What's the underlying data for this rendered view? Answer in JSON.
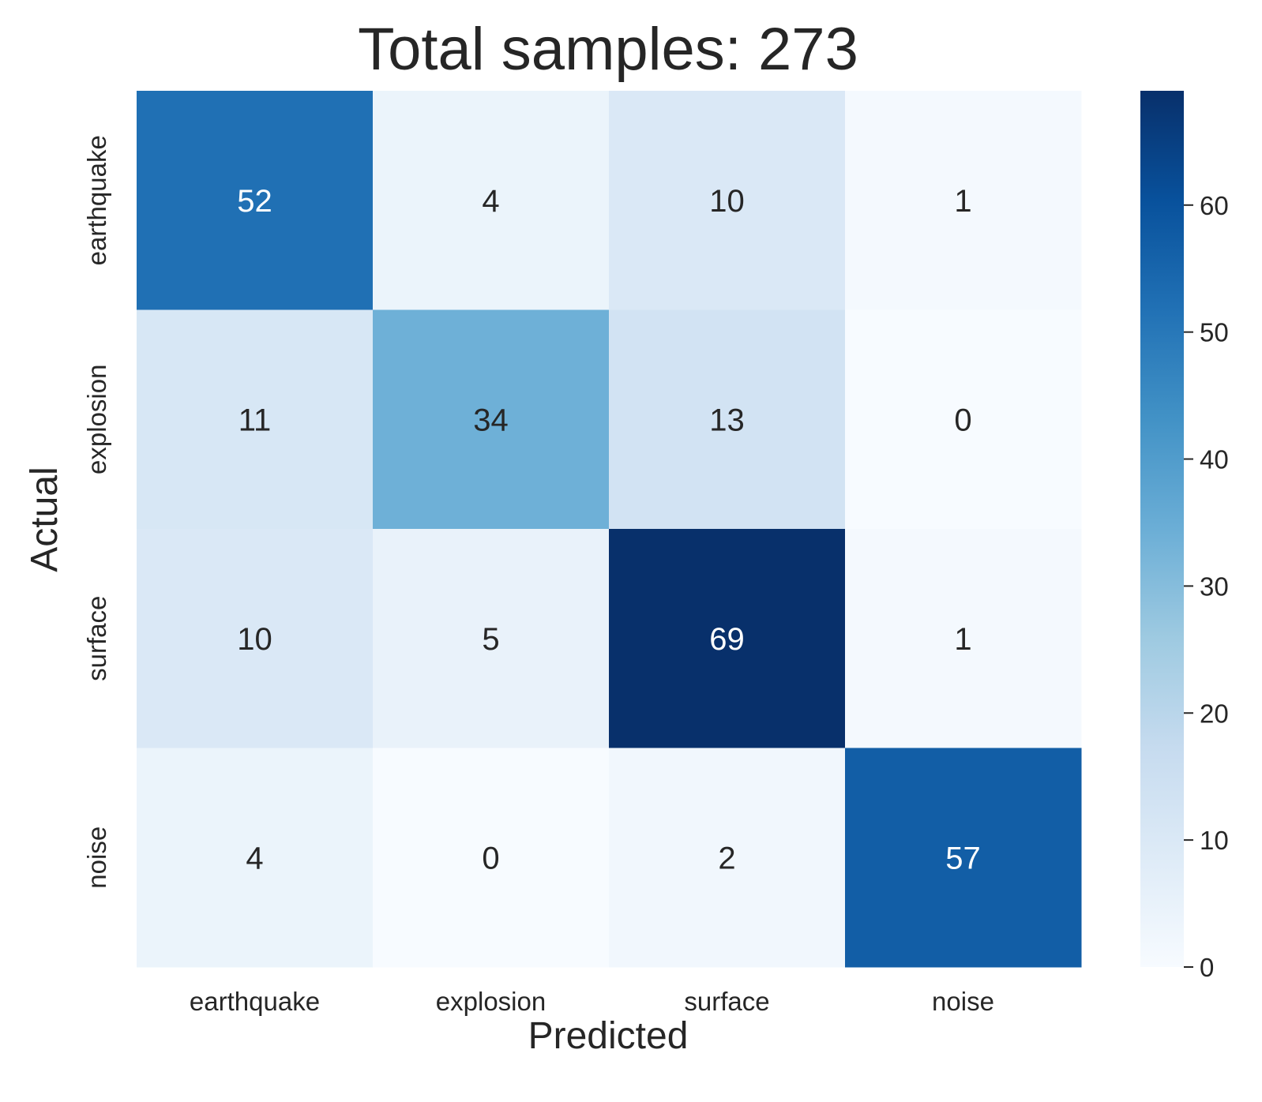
{
  "chart_data": {
    "type": "heatmap",
    "title": "Total samples: 273",
    "xlabel": "Predicted",
    "ylabel": "Actual",
    "x_categories": [
      "earthquake",
      "explosion",
      "surface",
      "noise"
    ],
    "y_categories": [
      "earthquake",
      "explosion",
      "surface",
      "noise"
    ],
    "values": [
      [
        52,
        4,
        10,
        1
      ],
      [
        11,
        34,
        13,
        0
      ],
      [
        10,
        5,
        69,
        1
      ],
      [
        4,
        0,
        2,
        57
      ]
    ],
    "colorbar": {
      "range": [
        0,
        69
      ],
      "ticks": [
        0,
        10,
        20,
        30,
        40,
        50,
        60
      ],
      "colormap": "Blues"
    },
    "grid": false
  }
}
